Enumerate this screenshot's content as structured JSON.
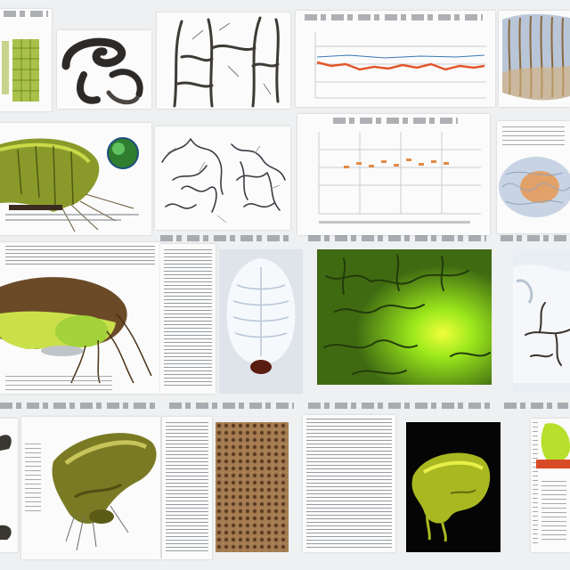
{
  "collage": {
    "background": "#eef0f1",
    "panel_count": 20
  },
  "colors": {
    "olive": "#8a9a2a",
    "lime": "#b6e02c",
    "bright_green": "#4fd11a",
    "orange_line": "#e2562a",
    "tan": "#8a6a40",
    "dark_branch": "#3e3a35",
    "grid_gray": "#c9cdd2"
  },
  "icons": [
    "leaf-cell-icon",
    "curled-organism-icon",
    "branching-tree-icon",
    "line-chart-icon",
    "ribbed-tissue-icon",
    "green-larva-icon",
    "green-sphere-icon",
    "neural-network-icon",
    "scatter-chart-icon",
    "bulb-tissue-icon",
    "beetle-icon",
    "white-bulb-icon",
    "glowing-green-mass-icon",
    "white-branch-icon",
    "olive-organism-icon",
    "textured-membrane-icon",
    "green-specimen-icon"
  ]
}
